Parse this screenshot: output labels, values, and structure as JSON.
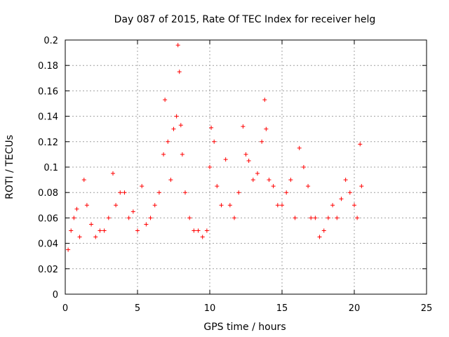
{
  "chart_data": {
    "type": "scatter",
    "title": "Day 087 of 2015, Rate Of TEC Index for receiver helg",
    "xlabel": "GPS time / hours",
    "ylabel": "ROTI / TECUs",
    "xlim": [
      0,
      25
    ],
    "ylim": [
      0,
      0.2
    ],
    "xticks": [
      "0",
      "5",
      "10",
      "15",
      "20",
      "25"
    ],
    "yticks": [
      "0",
      "0.02",
      "0.04",
      "0.06",
      "0.08",
      "0.1",
      "0.12",
      "0.14",
      "0.16",
      "0.18",
      "0.2"
    ],
    "grid": true,
    "legend": "none",
    "marker": "+",
    "color": "#ff0000",
    "series": [
      {
        "x": [
          0.2,
          0.4,
          0.6,
          0.8,
          1.0,
          1.3,
          1.5,
          1.8,
          2.1,
          2.4,
          2.7,
          3.0,
          3.3,
          3.5,
          3.8,
          4.1,
          4.4,
          4.7,
          5.0,
          5.3,
          5.6,
          5.9,
          6.2,
          6.5,
          6.8,
          6.9,
          7.1,
          7.3,
          7.5,
          7.7,
          7.8,
          7.9,
          8.0,
          8.1,
          8.3,
          8.6,
          8.9,
          9.2,
          9.5,
          9.8,
          10.0,
          10.1,
          10.3,
          10.5,
          10.8,
          11.1,
          11.4,
          11.7,
          12.0,
          12.3,
          12.5,
          12.7,
          13.0,
          13.3,
          13.6,
          13.8,
          13.9,
          14.1,
          14.4,
          14.7,
          15.0,
          15.3,
          15.6,
          15.9,
          16.2,
          16.5,
          16.8,
          17.0,
          17.3,
          17.6,
          17.9,
          18.2,
          18.5,
          18.8,
          19.1,
          19.4,
          19.7,
          20.0,
          20.2,
          20.4,
          20.5
        ],
        "y": [
          0.035,
          0.05,
          0.06,
          0.067,
          0.045,
          0.09,
          0.07,
          0.055,
          0.045,
          0.05,
          0.05,
          0.06,
          0.095,
          0.07,
          0.08,
          0.08,
          0.06,
          0.065,
          0.05,
          0.085,
          0.055,
          0.06,
          0.07,
          0.08,
          0.11,
          0.153,
          0.12,
          0.09,
          0.13,
          0.14,
          0.196,
          0.175,
          0.133,
          0.11,
          0.08,
          0.06,
          0.05,
          0.05,
          0.045,
          0.05,
          0.1,
          0.131,
          0.12,
          0.085,
          0.07,
          0.106,
          0.07,
          0.06,
          0.08,
          0.132,
          0.11,
          0.105,
          0.09,
          0.095,
          0.12,
          0.153,
          0.13,
          0.09,
          0.085,
          0.07,
          0.07,
          0.08,
          0.09,
          0.06,
          0.115,
          0.1,
          0.085,
          0.06,
          0.06,
          0.045,
          0.05,
          0.06,
          0.07,
          0.06,
          0.075,
          0.09,
          0.08,
          0.07,
          0.06,
          0.118,
          0.085
        ]
      }
    ]
  }
}
